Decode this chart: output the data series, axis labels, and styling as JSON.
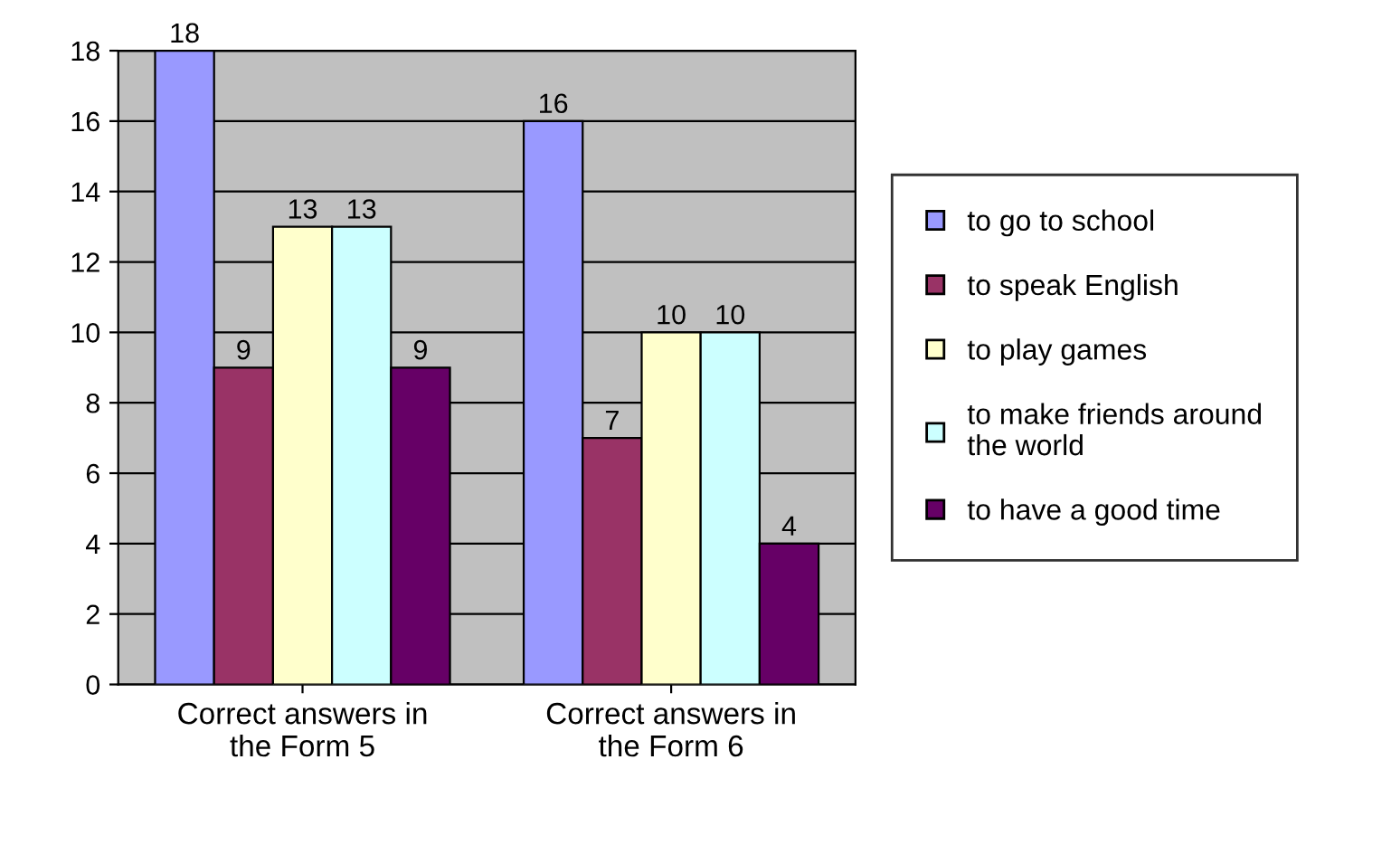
{
  "chart_data": {
    "type": "bar",
    "categories": [
      "Correct answers in the Form 5",
      "Correct answers in the Form 6"
    ],
    "series": [
      {
        "name": "to go to school",
        "color": "#9999ff",
        "values": [
          18,
          16
        ]
      },
      {
        "name": "to speak English",
        "color": "#993366",
        "values": [
          9,
          7
        ]
      },
      {
        "name": "to play games",
        "color": "#ffffcc",
        "values": [
          13,
          10
        ]
      },
      {
        "name": "to make friends around the world",
        "color": "#ccffff",
        "values": [
          13,
          10
        ]
      },
      {
        "name": "to have a good time",
        "color": "#660066",
        "values": [
          9,
          4
        ]
      }
    ],
    "ylim": [
      0,
      18
    ],
    "yticks": [
      0,
      2,
      4,
      6,
      8,
      10,
      12,
      14,
      16,
      18
    ],
    "grid": "y",
    "legend": "right",
    "data_labels": true
  }
}
